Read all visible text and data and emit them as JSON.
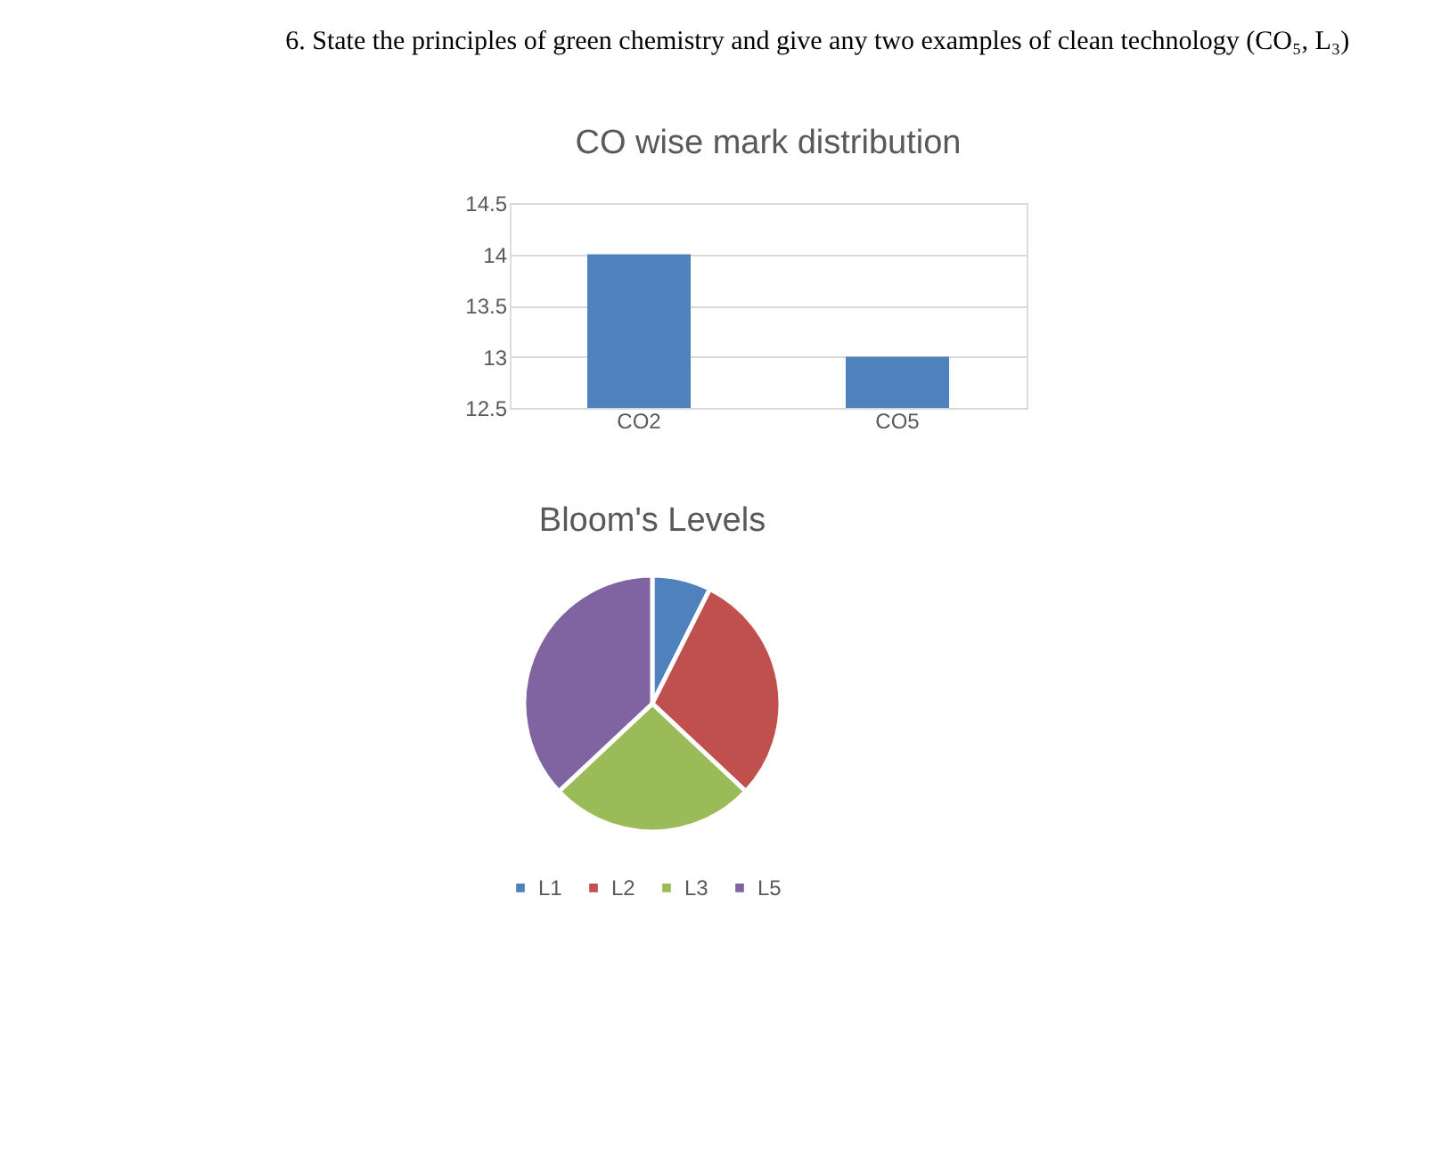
{
  "chart_data": [
    {
      "type": "bar",
      "title": "CO wise mark distribution",
      "annotations": [
        "6. State the principles of green chemistry and give any two examples of clean technology (CO₅, L₃)"
      ],
      "categories": [
        "CO2",
        "CO5"
      ],
      "values": [
        14,
        13
      ],
      "color": "#4f81bd",
      "ylim": [
        12.5,
        14.5
      ],
      "yticks": [
        12.5,
        13,
        13.5,
        14,
        14.5
      ],
      "grid": "y"
    },
    {
      "type": "pie",
      "title": "Bloom's Levels",
      "categories": [
        "L1",
        "L2",
        "L3",
        "L5"
      ],
      "values": [
        7.4,
        29.6,
        26.0,
        37.0
      ],
      "colors": [
        "#4f81bd",
        "#c0504d",
        "#9bbb59",
        "#8064a2"
      ],
      "legend": "bottom"
    }
  ]
}
